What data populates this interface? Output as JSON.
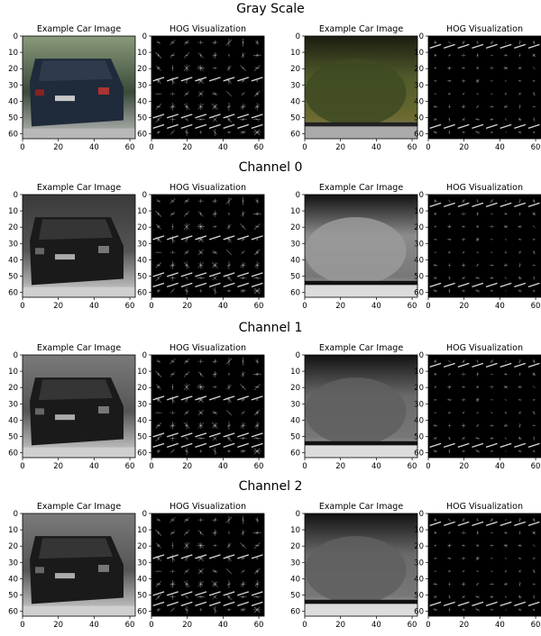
{
  "sections": [
    {
      "title": "Gray Scale",
      "mode": "gray"
    },
    {
      "title": "Channel 0",
      "mode": "ch0"
    },
    {
      "title": "Channel 1",
      "mode": "ch1"
    },
    {
      "title": "Channel 2",
      "mode": "ch2"
    }
  ],
  "panel_titles": {
    "car_image": "Example Car Image",
    "hog": "HOG Visualization"
  },
  "chart_data": {
    "type": "heatmap",
    "description_note": "4 rows (Gray Scale, Channel 0-2) x 4 images each: car image, its HOG, non-car image, its HOG",
    "xlim": [
      0,
      63
    ],
    "ylim": [
      63,
      0
    ],
    "x_ticks": [
      0,
      20,
      40,
      60
    ],
    "y_ticks": [
      0,
      10,
      20,
      30,
      40,
      50,
      60
    ],
    "hog_grid_cells": 8,
    "panels": [
      {
        "title": "Example Car Image",
        "kind": "car"
      },
      {
        "title": "HOG Visualization",
        "kind": "hog-car"
      },
      {
        "title": "Example Car Image",
        "kind": "noncar"
      },
      {
        "title": "HOG Visualization",
        "kind": "hog-noncar"
      }
    ]
  },
  "colors": {
    "gray_car_body": "#1f2a3a",
    "gray_sky": "#5e6b5a",
    "noncar_tree": "#4f5a2a",
    "hog_background": "#000000",
    "hog_stroke": "#ffffff"
  }
}
